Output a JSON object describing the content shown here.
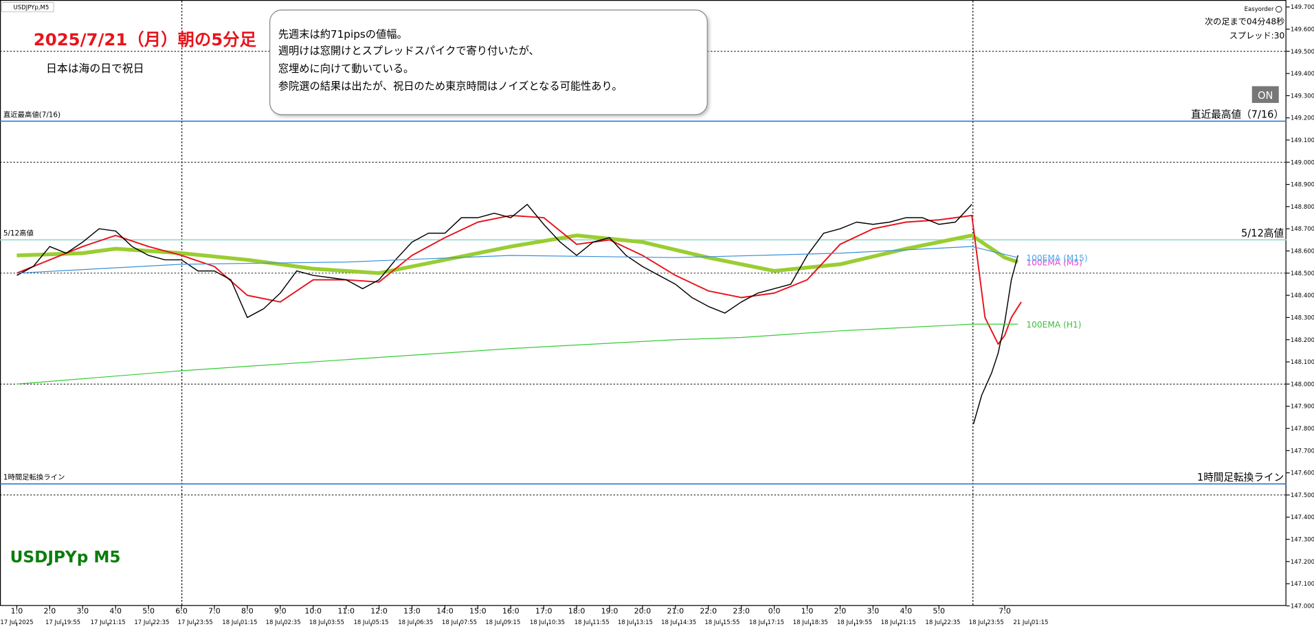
{
  "chart_data": {
    "type": "line",
    "symbol": "USDJPYp,M5",
    "title": "2025/7/21（月）朝の5分足",
    "subtitle": "日本は海の日で祝日",
    "watermark": "USDJPYp M5",
    "note": [
      "先週末は約71pipsの値幅。",
      "週明けは窓開けとスプレッドスパイクで寄り付いたが、",
      "窓埋めに向けて動いている。",
      "参院選の結果は出たが、祝日のため東京時間はノイズとなる可能性あり。"
    ],
    "panel": {
      "name": "Easyorder",
      "countdown": "次の足まで04分48秒",
      "spread": "スプレッド:30",
      "button": "ON"
    },
    "xlim": [
      -0.51,
      38.55
    ],
    "ylim": [
      147.0,
      149.72
    ],
    "xticks": [
      {
        "value": 0,
        "label": "1:0"
      },
      {
        "value": 1,
        "label": "2:0"
      },
      {
        "value": 2,
        "label": "3:0"
      },
      {
        "value": 3,
        "label": "4:0"
      },
      {
        "value": 4,
        "label": "5:0"
      },
      {
        "value": 5,
        "label": "6:0"
      },
      {
        "value": 6,
        "label": "7:0"
      },
      {
        "value": 7,
        "label": "8:0"
      },
      {
        "value": 8,
        "label": "9:0"
      },
      {
        "value": 9,
        "label": "10:0"
      },
      {
        "value": 10,
        "label": "11:0"
      },
      {
        "value": 11,
        "label": "12:0"
      },
      {
        "value": 12,
        "label": "13:0"
      },
      {
        "value": 13,
        "label": "14:0"
      },
      {
        "value": 14,
        "label": "15:0"
      },
      {
        "value": 15,
        "label": "16:0"
      },
      {
        "value": 16,
        "label": "17:0"
      },
      {
        "value": 17,
        "label": "18:0"
      },
      {
        "value": 18,
        "label": "19:0"
      },
      {
        "value": 19,
        "label": "20:0"
      },
      {
        "value": 20,
        "label": "21:0"
      },
      {
        "value": 21,
        "label": "22:0"
      },
      {
        "value": 22,
        "label": "23:0"
      },
      {
        "value": 23,
        "label": "0:0"
      },
      {
        "value": 24,
        "label": "1:0"
      },
      {
        "value": 25,
        "label": "2:0"
      },
      {
        "value": 26,
        "label": "3:0"
      },
      {
        "value": 27,
        "label": "4:0"
      },
      {
        "value": 28,
        "label": "5:0"
      },
      {
        "value": 30,
        "label": "7:0"
      }
    ],
    "xticks2": [
      {
        "value": 0,
        "label": "17 Jul 2025"
      },
      {
        "value": 1.4,
        "label": "17 Jul 19:55"
      },
      {
        "value": 2.77,
        "label": "17 Jul 21:15"
      },
      {
        "value": 4.1,
        "label": "17 Jul 22:35"
      },
      {
        "value": 5.42,
        "label": "17 Jul 23:55"
      },
      {
        "value": 6.77,
        "label": "18 Jul 01:15"
      },
      {
        "value": 8.09,
        "label": "18 Jul 02:35"
      },
      {
        "value": 9.41,
        "label": "18 Jul 03:55"
      },
      {
        "value": 10.76,
        "label": "18 Jul 05:15"
      },
      {
        "value": 12.11,
        "label": "18 Jul 06:35"
      },
      {
        "value": 13.44,
        "label": "18 Jul 07:55"
      },
      {
        "value": 14.76,
        "label": "18 Jul 09:15"
      },
      {
        "value": 16.11,
        "label": "18 Jul 10:35"
      },
      {
        "value": 17.46,
        "label": "18 Jul 11:55"
      },
      {
        "value": 18.78,
        "label": "18 Jul 13:15"
      },
      {
        "value": 20.1,
        "label": "18 Jul 14:35"
      },
      {
        "value": 21.42,
        "label": "18 Jul 15:55"
      },
      {
        "value": 22.77,
        "label": "18 Jul 17:15"
      },
      {
        "value": 24.1,
        "label": "18 Jul 18:35"
      },
      {
        "value": 25.44,
        "label": "18 Jul 19:55"
      },
      {
        "value": 26.77,
        "label": "18 Jul 21:15"
      },
      {
        "value": 28.12,
        "label": "18 Jul 22:35"
      },
      {
        "value": 29.44,
        "label": "18 Jul 23:55"
      },
      {
        "value": 30.79,
        "label": "21 Jul 01:15"
      }
    ],
    "yticks": [
      {
        "value": 149.7,
        "label": "149.700"
      },
      {
        "value": 149.6,
        "label": "149.600"
      },
      {
        "value": 149.5,
        "label": "149.500"
      },
      {
        "value": 149.4,
        "label": "149.400"
      },
      {
        "value": 149.3,
        "label": "149.300"
      },
      {
        "value": 149.2,
        "label": "149.200"
      },
      {
        "value": 149.1,
        "label": "149.100"
      },
      {
        "value": 149.0,
        "label": "149.000"
      },
      {
        "value": 148.9,
        "label": "148.900"
      },
      {
        "value": 148.8,
        "label": "148.800"
      },
      {
        "value": 148.7,
        "label": "148.700"
      },
      {
        "value": 148.6,
        "label": "148.600"
      },
      {
        "value": 148.5,
        "label": "148.500"
      },
      {
        "value": 148.4,
        "label": "148.400"
      },
      {
        "value": 148.3,
        "label": "148.300"
      },
      {
        "value": 148.2,
        "label": "148.200"
      },
      {
        "value": 148.1,
        "label": "148.100"
      },
      {
        "value": 148.0,
        "label": "148.000"
      },
      {
        "value": 147.9,
        "label": "147.900"
      },
      {
        "value": 147.8,
        "label": "147.800"
      },
      {
        "value": 147.7,
        "label": "147.700"
      },
      {
        "value": 147.6,
        "label": "147.600"
      },
      {
        "value": 147.5,
        "label": "147.500"
      },
      {
        "value": 147.4,
        "label": "147.400"
      },
      {
        "value": 147.3,
        "label": "147.300"
      },
      {
        "value": 147.2,
        "label": "147.200"
      },
      {
        "value": 147.1,
        "label": "147.100"
      },
      {
        "value": 147.0,
        "label": "147.000"
      }
    ],
    "ygrid": [
      149.5,
      149.0,
      148.5,
      148.0,
      147.5
    ],
    "hlines": [
      {
        "value": 149.185,
        "label_left": "直近最高値(7/16)",
        "label_right": "直近最高値（7/16）",
        "color": "#1e6fd9"
      },
      {
        "value": 148.65,
        "label_left": "5/12高値",
        "label_right": "5/12高値",
        "color": "#8fd8d0"
      },
      {
        "value": 147.55,
        "label_left": "1時間足転換ライン",
        "label_right": "1時間足転換ライン",
        "color": "#1e6fd9"
      }
    ],
    "series": [
      {
        "color": "#000000",
        "width": 1.2,
        "x": [
          0,
          0.5,
          1,
          1.5,
          2,
          2.5,
          3,
          3.5,
          4,
          4.5,
          5,
          5.5,
          6,
          6.5,
          7,
          7.5,
          8,
          8.5,
          9,
          9.5,
          10,
          10.5,
          11,
          11.5,
          12,
          12.5,
          13,
          13.5,
          14,
          14.5,
          15,
          15.5,
          16,
          16.5,
          17,
          17.5,
          18,
          18.5,
          19,
          19.5,
          20,
          20.5,
          21,
          21.5,
          22,
          22.5,
          23,
          23.5,
          24,
          24.5,
          25,
          25.5,
          26,
          26.5,
          27,
          27.5,
          28,
          28.5,
          29,
          29.03,
          29.05,
          29.3,
          29.6,
          29.8,
          30,
          30.2,
          30.4
        ],
        "values": [
          148.49,
          148.53,
          148.62,
          148.59,
          148.64,
          148.7,
          148.69,
          148.62,
          148.58,
          148.56,
          148.56,
          148.51,
          148.51,
          148.47,
          148.3,
          148.34,
          148.41,
          148.51,
          148.49,
          148.48,
          148.47,
          148.43,
          148.47,
          148.56,
          148.64,
          148.68,
          148.68,
          148.75,
          148.75,
          148.77,
          148.75,
          148.81,
          148.72,
          148.64,
          148.58,
          148.64,
          148.66,
          148.58,
          148.53,
          148.49,
          148.45,
          148.39,
          148.35,
          148.32,
          148.37,
          148.41,
          148.43,
          148.45,
          148.58,
          148.68,
          148.7,
          148.73,
          148.72,
          148.73,
          148.75,
          148.75,
          148.72,
          148.73,
          148.81,
          null,
          147.82,
          147.95,
          148.05,
          148.14,
          148.28,
          148.47,
          148.58
        ]
      },
      {
        "color": "#e8131b",
        "width": 1.6,
        "x": [
          0,
          1,
          2,
          3,
          4,
          5,
          6,
          7,
          8,
          9,
          10,
          11,
          12,
          13,
          14,
          15,
          16,
          17,
          18,
          19,
          20,
          21,
          22,
          23,
          24,
          25,
          26,
          27,
          28,
          29,
          29.4,
          29.8,
          30,
          30.2,
          30.5
        ],
        "values": [
          148.5,
          148.56,
          148.62,
          148.67,
          148.62,
          148.58,
          148.53,
          148.4,
          148.37,
          148.47,
          148.47,
          148.46,
          148.58,
          148.66,
          148.73,
          148.76,
          148.75,
          148.63,
          148.65,
          148.58,
          148.49,
          148.42,
          148.39,
          148.41,
          148.47,
          148.63,
          148.7,
          148.73,
          148.74,
          148.76,
          148.3,
          148.18,
          148.22,
          148.3,
          148.37
        ]
      },
      {
        "name": "100EMA (M5)",
        "color": "#9acd32",
        "label_color": "#e040d0",
        "width": 4.5,
        "x": [
          0,
          2,
          3,
          5,
          7,
          9,
          11,
          13,
          15,
          17,
          19,
          21,
          23,
          25,
          27,
          29,
          30,
          30.4
        ],
        "values": [
          148.58,
          148.59,
          148.61,
          148.59,
          148.56,
          148.52,
          148.5,
          148.56,
          148.62,
          148.67,
          148.64,
          148.57,
          148.51,
          148.54,
          148.61,
          148.67,
          148.57,
          148.55
        ]
      },
      {
        "name": "100EMA (M15)",
        "color": "#3a8fd8",
        "label_color": "#4aa8e8",
        "width": 1,
        "x": [
          0,
          5,
          10,
          15,
          20,
          25,
          29,
          30.4
        ],
        "values": [
          148.5,
          148.54,
          148.55,
          148.58,
          148.57,
          148.59,
          148.62,
          148.57
        ]
      },
      {
        "name": "100EMA (H1)",
        "color": "#33cc33",
        "label_color": "#3cbf3c",
        "width": 1,
        "x": [
          0,
          5,
          10,
          15,
          20,
          22,
          25,
          29,
          30.4
        ],
        "values": [
          148.0,
          148.06,
          148.11,
          148.16,
          148.2,
          148.21,
          148.24,
          148.27,
          148.27
        ]
      }
    ]
  }
}
